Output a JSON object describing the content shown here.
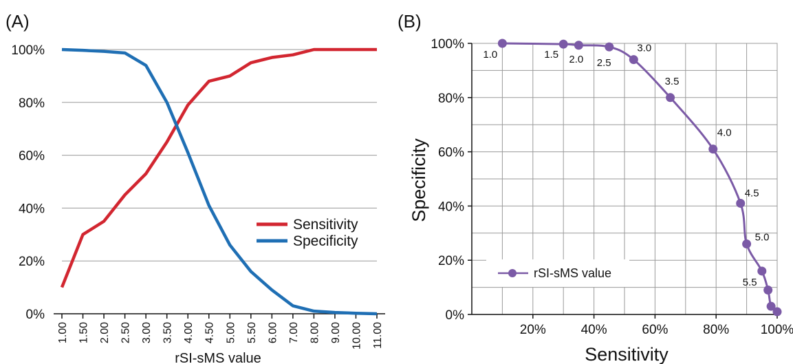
{
  "chart_data": [
    {
      "panel_label": "(A)",
      "type": "line",
      "xlabel": "rSI-sMS value",
      "ylabel": "",
      "ylim": [
        0,
        100
      ],
      "y_unit": "%",
      "y_ticks": [
        "0%",
        "20%",
        "40%",
        "60%",
        "80%",
        "100%"
      ],
      "categories": [
        "1.00",
        "1.50",
        "2.00",
        "2.50",
        "3.00",
        "3.50",
        "4.00",
        "4.50",
        "5.00",
        "5.50",
        "6.00",
        "7.00",
        "8.00",
        "9.00",
        "10.00",
        "11.00"
      ],
      "series": [
        {
          "name": "Sensitivity",
          "color": "#d22630",
          "values": [
            10,
            30,
            35,
            45,
            53,
            65,
            79,
            88,
            90,
            95,
            97,
            98,
            100,
            100,
            100,
            100
          ]
        },
        {
          "name": "Specificity",
          "color": "#1f6fb4",
          "values": [
            100,
            99.7,
            99.3,
            98.7,
            94,
            80,
            61,
            41,
            26,
            16,
            9,
            3,
            1,
            0.5,
            0.2,
            0
          ]
        }
      ],
      "grid": true,
      "legend_position": "lower-right"
    },
    {
      "panel_label": "(B)",
      "type": "line",
      "xlabel": "Sensitivity",
      "ylabel": "Specificity",
      "xlim": [
        0,
        100
      ],
      "ylim": [
        0,
        100
      ],
      "x_ticks": [
        "20%",
        "40%",
        "60%",
        "80%",
        "100%"
      ],
      "y_ticks": [
        "0%",
        "20%",
        "40%",
        "60%",
        "80%",
        "100%"
      ],
      "series": [
        {
          "name": "rSI-sMS value",
          "color": "#7b5aa6",
          "x": [
            10,
            30,
            35,
            45,
            53,
            65,
            79,
            88,
            90,
            95,
            97,
            98,
            100
          ],
          "y": [
            100,
            99.7,
            99.3,
            98.7,
            94,
            80,
            61,
            41,
            26,
            16,
            9,
            3,
            1
          ],
          "point_labels": [
            "1.0",
            "1.5",
            "2.0",
            "2.5",
            "3.0",
            "3.5",
            "4.0",
            "4.5",
            "5.0",
            "5.5",
            "",
            "",
            ""
          ]
        }
      ],
      "grid": true,
      "legend_position": "lower-left"
    }
  ]
}
